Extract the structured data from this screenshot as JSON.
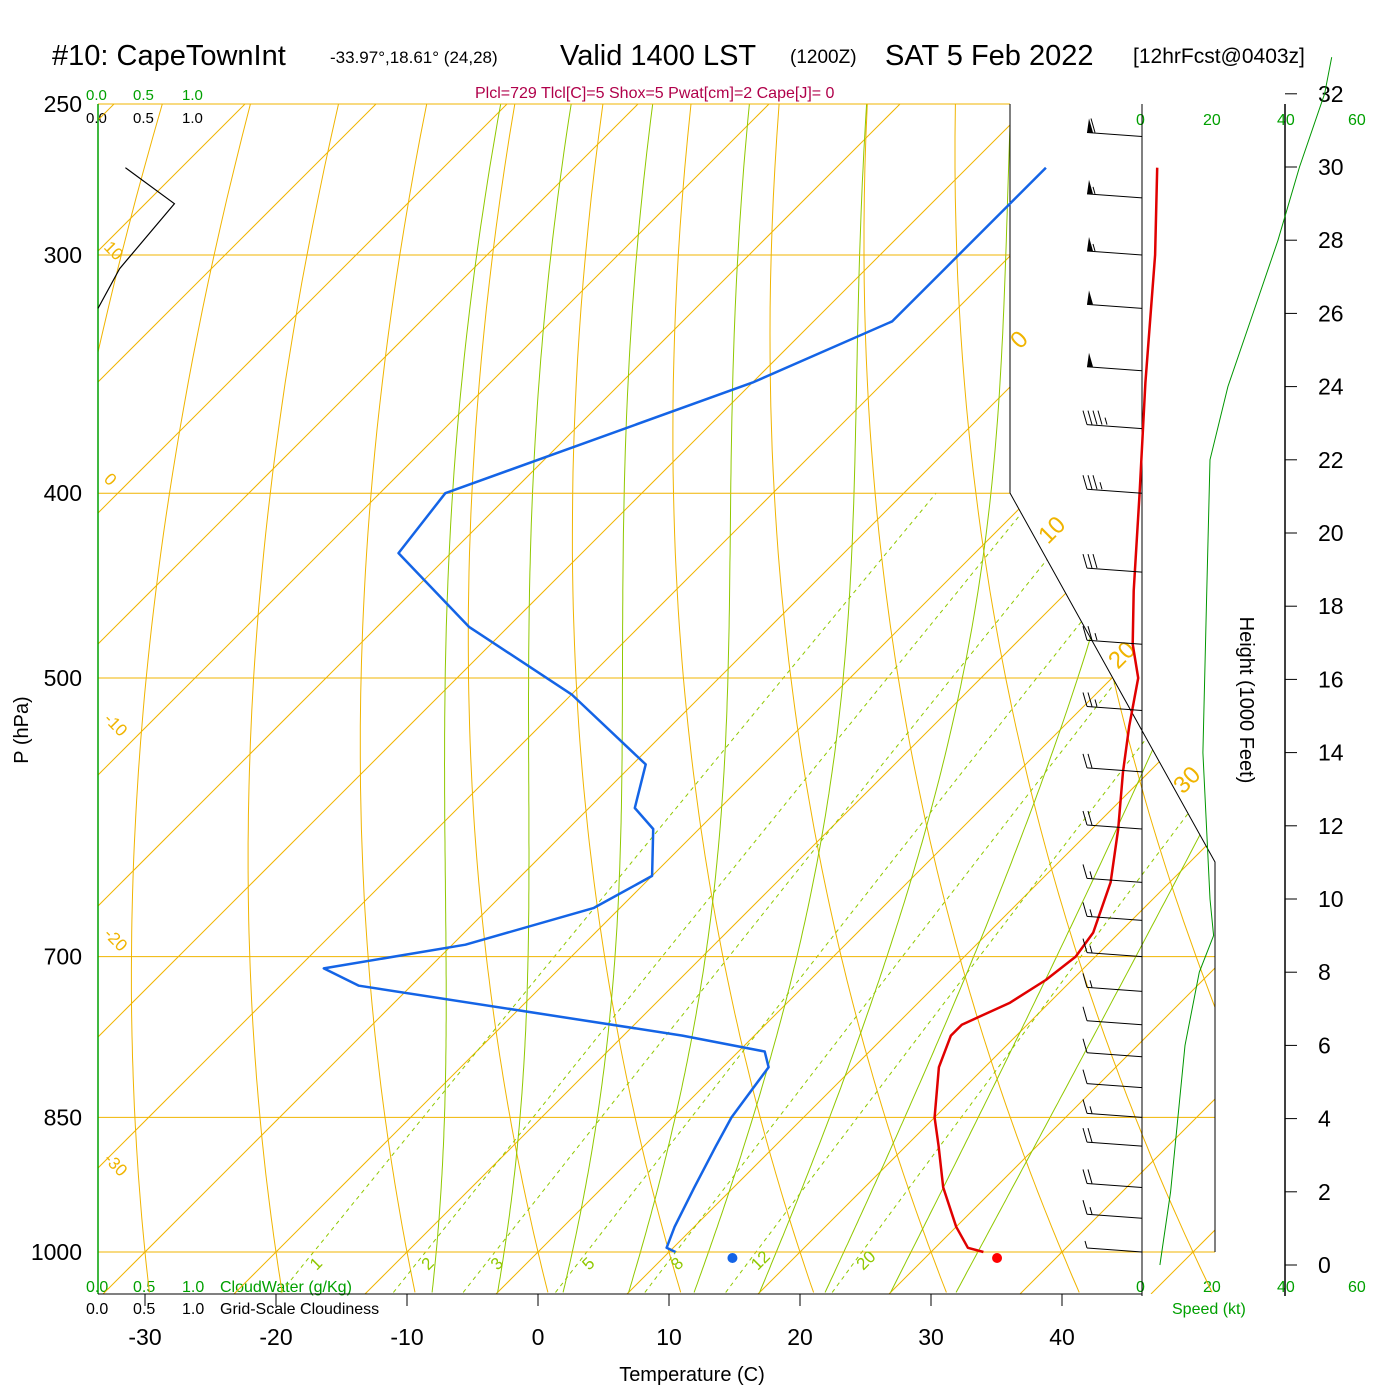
{
  "header": {
    "station": "#10: CapeTownInt",
    "coords": "-33.97°,18.61° (24,28)",
    "valid": "Valid 1400 LST",
    "utc": "(1200Z)",
    "date": "SAT 5 Feb 2022",
    "forecast": "[12hrFcst@0403z]",
    "params": "Plcl=729 Tlcl[C]=5 Shox=5 Pwat[cm]=2 Cape[J]= 0"
  },
  "scales": {
    "cloudwater_ticks": [
      "0.0",
      "0.5",
      "1.0"
    ],
    "cloudiness_ticks": [
      "0.0",
      "0.5",
      "1.0"
    ],
    "cloudwater_label": "CloudWater (g/Kg)",
    "cloudiness_label": "Grid-Scale Cloudiness",
    "speed_ticks": [
      "0",
      "20",
      "40",
      "60"
    ],
    "speed_label": "Speed (kt)"
  },
  "colors": {
    "isobar": "#f0b400",
    "dry_adiabat": "#f0b400",
    "moist_adiabat": "#90c800",
    "mixing_ratio": "#90c800",
    "temperature": "#e00000",
    "dewpoint": "#1464e6",
    "cloudwater": "#00a000",
    "height_profile": "#009600",
    "parcel_temp_dot": "#ff0000",
    "parcel_dew_dot": "#1464e6"
  },
  "chart_data": {
    "type": "skew-t",
    "xlabel": "Temperature (C)",
    "ylabel": "P (hPa)",
    "y2label": "Height (1000 Feet)",
    "x_ticks": [
      -30,
      -20,
      -10,
      0,
      10,
      20,
      30,
      40
    ],
    "p_ticks": [
      250,
      300,
      400,
      500,
      700,
      850,
      1000
    ],
    "height_ticks": [
      0,
      2,
      4,
      6,
      8,
      10,
      12,
      14,
      16,
      18,
      20,
      22,
      24,
      26,
      28,
      30,
      32
    ],
    "isotherm_labels_left": [
      "10",
      "0",
      "-10",
      "-20",
      "-30"
    ],
    "isotherm_labels_right": [
      "0",
      "10",
      "20",
      "30"
    ],
    "mixing_ratio_labels": [
      "1",
      "2",
      "3",
      "5",
      "8",
      "12",
      "20"
    ],
    "temperature_profile": [
      {
        "p": 1000,
        "t": 34.0
      },
      {
        "p": 995,
        "t": 32.5
      },
      {
        "p": 970,
        "t": 30.0
      },
      {
        "p": 925,
        "t": 26.0
      },
      {
        "p": 880,
        "t": 22.5
      },
      {
        "p": 850,
        "t": 20.0
      },
      {
        "p": 800,
        "t": 16.5
      },
      {
        "p": 770,
        "t": 15.0
      },
      {
        "p": 760,
        "t": 15.0
      },
      {
        "p": 740,
        "t": 17.0
      },
      {
        "p": 720,
        "t": 18.0
      },
      {
        "p": 700,
        "t": 18.5
      },
      {
        "p": 680,
        "t": 18.0
      },
      {
        "p": 640,
        "t": 15.5
      },
      {
        "p": 600,
        "t": 12.0
      },
      {
        "p": 560,
        "t": 8.0
      },
      {
        "p": 530,
        "t": 5.0
      },
      {
        "p": 500,
        "t": 2.0
      },
      {
        "p": 480,
        "t": -1.0
      },
      {
        "p": 450,
        "t": -5.0
      },
      {
        "p": 400,
        "t": -12.0
      },
      {
        "p": 350,
        "t": -20.0
      },
      {
        "p": 300,
        "t": -29.0
      },
      {
        "p": 270,
        "t": -35.5
      }
    ],
    "dewpoint_profile": [
      {
        "p": 1000,
        "t": 10.5
      },
      {
        "p": 995,
        "t": 9.5
      },
      {
        "p": 970,
        "t": 8.5
      },
      {
        "p": 925,
        "t": 7.0
      },
      {
        "p": 880,
        "t": 5.5
      },
      {
        "p": 850,
        "t": 4.5
      },
      {
        "p": 800,
        "t": 3.5
      },
      {
        "p": 785,
        "t": 2.0
      },
      {
        "p": 770,
        "t": -5.5
      },
      {
        "p": 725,
        "t": -34.0
      },
      {
        "p": 710,
        "t": -38.0
      },
      {
        "p": 690,
        "t": -29.0
      },
      {
        "p": 660,
        "t": -22.0
      },
      {
        "p": 635,
        "t": -20.0
      },
      {
        "p": 600,
        "t": -23.5
      },
      {
        "p": 585,
        "t": -26.5
      },
      {
        "p": 555,
        "t": -29.0
      },
      {
        "p": 510,
        "t": -40.0
      },
      {
        "p": 470,
        "t": -53.0
      },
      {
        "p": 430,
        "t": -64.0
      },
      {
        "p": 400,
        "t": -65.0
      },
      {
        "p": 350,
        "t": -50.0
      },
      {
        "p": 325,
        "t": -44.0
      },
      {
        "p": 305,
        "t": -44.0
      },
      {
        "p": 270,
        "t": -44.0
      }
    ],
    "cloudiness_profile": [
      {
        "p": 270,
        "v": 0.28
      },
      {
        "p": 282,
        "v": 0.78
      },
      {
        "p": 305,
        "v": 0.22
      },
      {
        "p": 320,
        "v": 0.0
      }
    ],
    "height_profile": [
      {
        "h": 0,
        "s": 5
      },
      {
        "h": 2,
        "s": 8
      },
      {
        "h": 4,
        "s": 10
      },
      {
        "h": 6,
        "s": 12
      },
      {
        "h": 8,
        "s": 16
      },
      {
        "h": 9,
        "s": 20
      },
      {
        "h": 10,
        "s": 19
      },
      {
        "h": 14,
        "s": 17
      },
      {
        "h": 18,
        "s": 18
      },
      {
        "h": 22,
        "s": 19
      },
      {
        "h": 24,
        "s": 24
      },
      {
        "h": 26,
        "s": 31
      },
      {
        "h": 28,
        "s": 38
      },
      {
        "h": 30,
        "s": 44
      },
      {
        "h": 32,
        "s": 51
      },
      {
        "h": 33,
        "s": 53
      }
    ],
    "wind_barbs": [
      {
        "p": 1000,
        "speed": 5
      },
      {
        "p": 960,
        "speed": 15
      },
      {
        "p": 925,
        "speed": 20
      },
      {
        "p": 880,
        "speed": 20
      },
      {
        "p": 850,
        "speed": 15
      },
      {
        "p": 820,
        "speed": 10
      },
      {
        "p": 790,
        "speed": 10
      },
      {
        "p": 760,
        "speed": 10
      },
      {
        "p": 730,
        "speed": 15
      },
      {
        "p": 700,
        "speed": 15
      },
      {
        "p": 670,
        "speed": 15
      },
      {
        "p": 640,
        "speed": 15
      },
      {
        "p": 600,
        "speed": 20
      },
      {
        "p": 560,
        "speed": 20
      },
      {
        "p": 520,
        "speed": 25
      },
      {
        "p": 480,
        "speed": 25
      },
      {
        "p": 440,
        "speed": 30
      },
      {
        "p": 400,
        "speed": 35
      },
      {
        "p": 370,
        "speed": 45
      },
      {
        "p": 345,
        "speed": 50
      },
      {
        "p": 320,
        "speed": 50
      },
      {
        "p": 300,
        "speed": 55
      },
      {
        "p": 280,
        "speed": 55
      },
      {
        "p": 260,
        "speed": 60
      }
    ],
    "parcel_markers": {
      "temperature": 35.5,
      "dewpoint": 15.3
    }
  }
}
